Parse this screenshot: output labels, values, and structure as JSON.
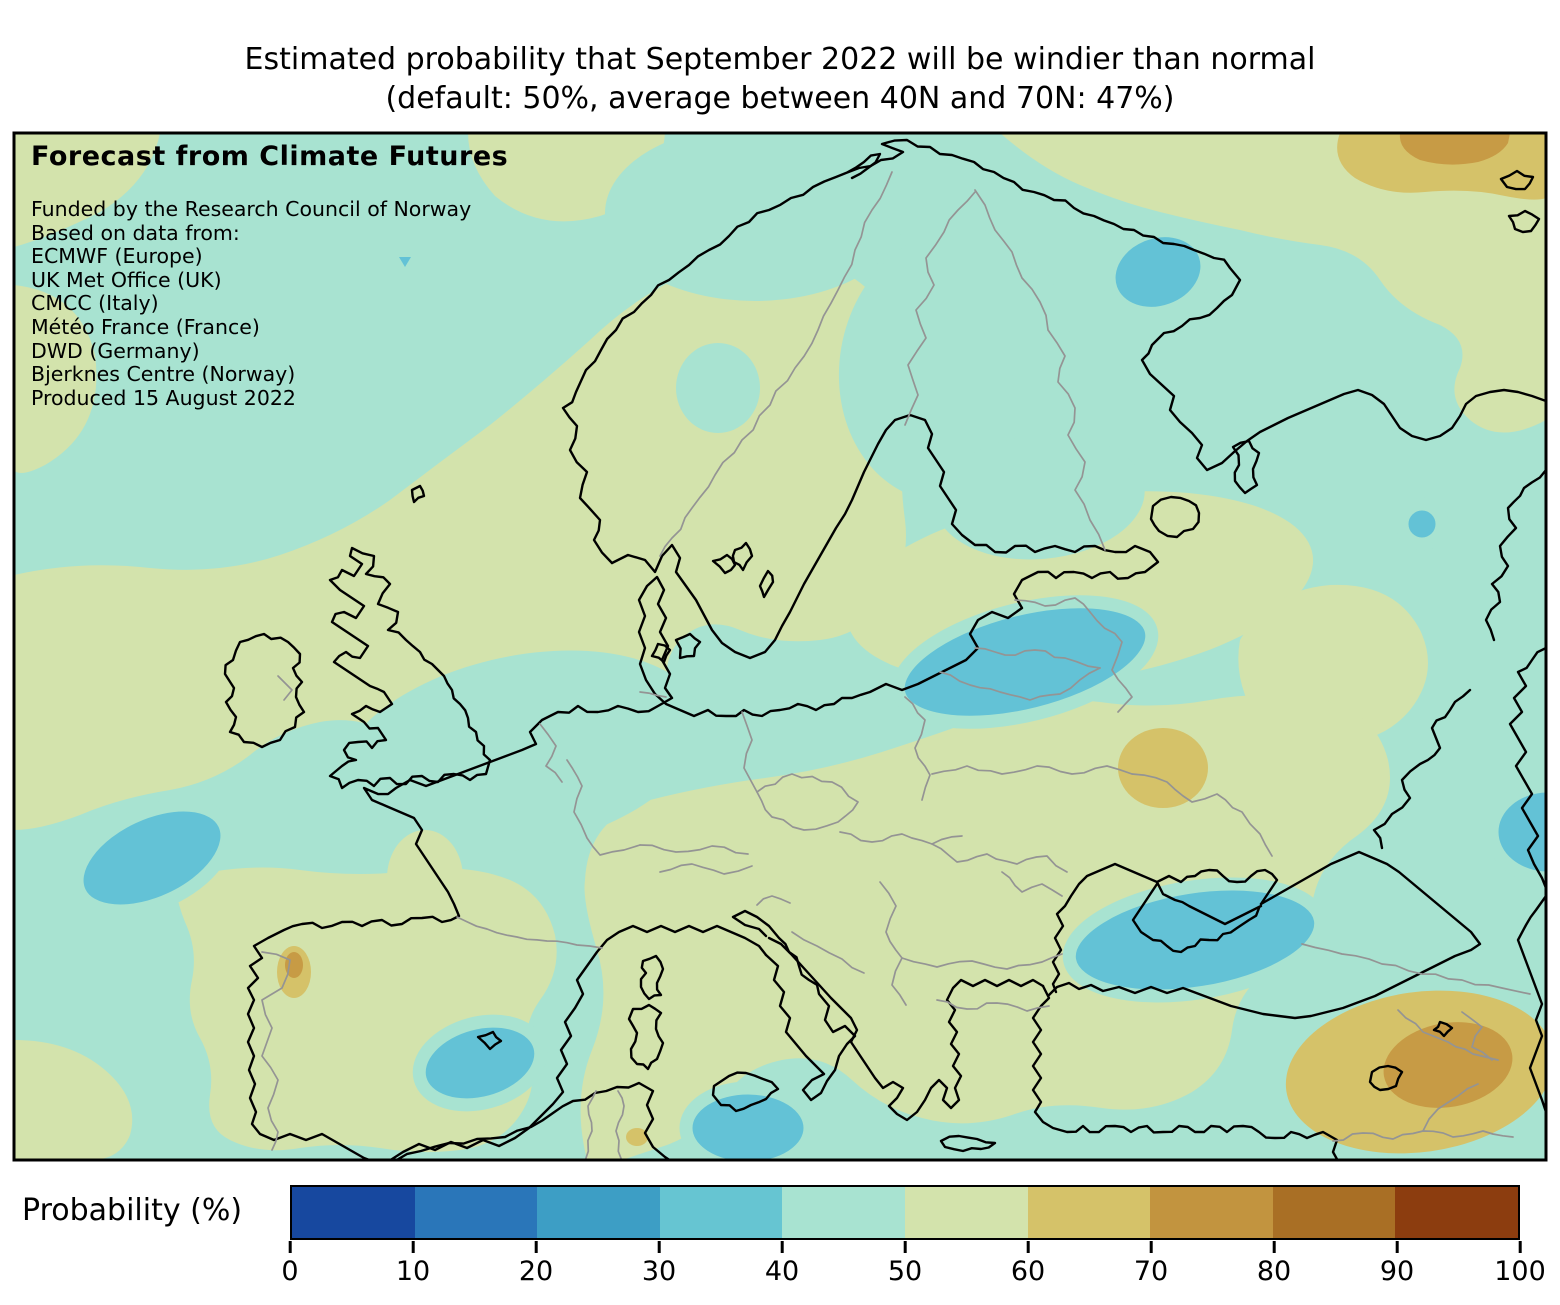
{
  "title": {
    "line1": "Estimated probability that September 2022 will be windier than normal",
    "line2": "(default: 50%, average between 40N and 70N: 47%)"
  },
  "annotation": {
    "heading": "Forecast from Climate Futures",
    "lines": [
      "Funded by the Research Council of Norway",
      "Based on data from:",
      "ECMWF (Europe)",
      "UK Met Office (UK)",
      "CMCC (Italy)",
      "Météo France (France)",
      "DWD (Germany)",
      "Bjerknes Centre (Norway)",
      "Produced 15 August 2022"
    ]
  },
  "colorbar": {
    "label": "Probability (%)",
    "ticks": [
      "0",
      "10",
      "20",
      "30",
      "40",
      "50",
      "60",
      "70",
      "80",
      "90",
      "100"
    ],
    "colors": [
      "#17489f",
      "#2a76b9",
      "#3d9ec5",
      "#66c5d2",
      "#a8e3d1",
      "#d3e3ac",
      "#d5c269",
      "#c2943f",
      "#a96f25",
      "#8c3d0f"
    ]
  },
  "map": {
    "colors": {
      "level30": "#63c2d6",
      "level40": "#a8e3d1",
      "level50": "#d3e3ac",
      "level60": "#d5c269",
      "level70": "#c79b45"
    },
    "coast": "#000000",
    "border_lines": "#949494",
    "frame": "#000000"
  }
}
